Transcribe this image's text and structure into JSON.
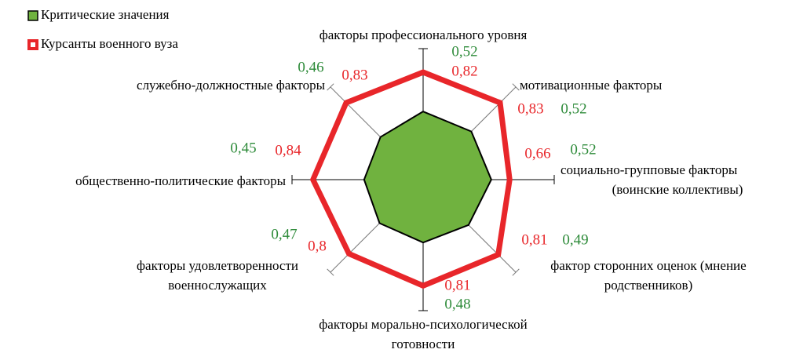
{
  "chart_data": {
    "type": "radar",
    "categories": [
      [
        "факторы профессионального уровня"
      ],
      [
        "мотивационные факторы"
      ],
      [
        "социально-групповые факторы",
        "(воинские коллективы)"
      ],
      [
        "фактор сторонних оценок (мнение",
        "родственников)"
      ],
      [
        "факторы морально-психологической",
        "готовности"
      ],
      [
        "факторы удовлетворенности",
        "военнослужащих"
      ],
      [
        "общественно-политические факторы"
      ],
      [
        "служебно-должностные факторы"
      ]
    ],
    "series": [
      {
        "name": "Критические значения",
        "color": "#70b23f",
        "values": [
          0.52,
          0.52,
          0.52,
          0.49,
          0.48,
          0.47,
          0.45,
          0.46
        ],
        "value_labels": [
          "0,52",
          "0,52",
          "0,52",
          "0,49",
          "0,48",
          "0,47",
          "0,45",
          "0,46"
        ],
        "label_color": "#2e8b3a"
      },
      {
        "name": "Курсанты военного вуза",
        "color": "#e8262a",
        "values": [
          0.82,
          0.83,
          0.66,
          0.81,
          0.81,
          0.8,
          0.84,
          0.83
        ],
        "value_labels": [
          "0,82",
          "0,83",
          "0,66",
          "0,81",
          "0,81",
          "0,8",
          "0,84",
          "0,83"
        ],
        "label_color": "#e8262a"
      }
    ],
    "rlim": [
      0,
      1
    ],
    "legend": "upper left"
  }
}
